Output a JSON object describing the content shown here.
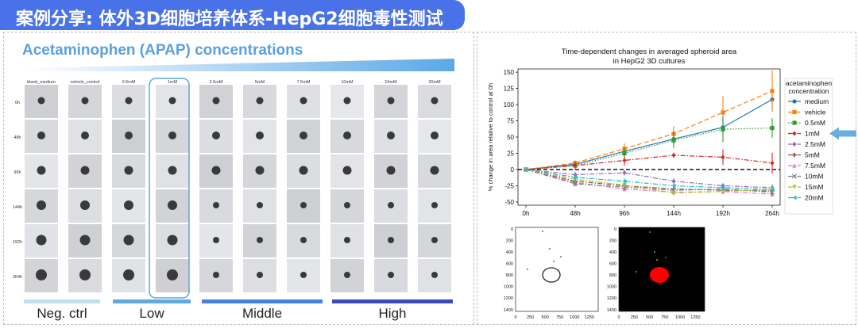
{
  "banner": {
    "title": "案例分享: 体外3D细胞培养体系-HepG2细胞毒性测试"
  },
  "left": {
    "title": "Acetaminophen (APAP) concentrations",
    "columns": [
      "blank_medium",
      "vehicle_control",
      "0.5mM",
      "1mM",
      "2.5mM",
      "5mM",
      "7.5mM",
      "10mM",
      "15mM",
      "20mM"
    ],
    "rows": [
      "0h",
      "48h",
      "96h",
      "144h",
      "192h",
      "264h"
    ],
    "groups": [
      {
        "label": "Neg. ctrl",
        "color": "#bfe1ee"
      },
      {
        "label": "Low",
        "color": "#5fa8e0"
      },
      {
        "label": "Middle",
        "color": "#4680e0"
      },
      {
        "label": "High",
        "color": "#3a4bb5"
      }
    ],
    "highlight_column": "1mM"
  },
  "chart_data": {
    "type": "line",
    "title": "Time-dependent changes in averaged spheroid area\nin HepG2 3D cultures",
    "title_lines": [
      "Time-dependent changes in averaged spheroid area",
      "in HepG2 3D cultures"
    ],
    "xlabel": "",
    "ylabel": "% change in area relative to control at 0h",
    "categories": [
      "0h",
      "48h",
      "96h",
      "144h",
      "192h",
      "264h"
    ],
    "ylim": [
      -55,
      155
    ],
    "yticks": [
      -50,
      -25,
      0,
      25,
      50,
      75,
      100,
      125,
      150
    ],
    "legend_title": [
      "acetaminophen",
      "concentration"
    ],
    "legend_position": "right",
    "highlight_series": "1mM",
    "series": [
      {
        "name": "medium",
        "color": "#1f77b4",
        "marker": "o",
        "dash": "solid",
        "values": [
          0,
          8,
          28,
          47,
          65,
          108
        ],
        "errors": [
          0,
          4,
          6,
          8,
          12,
          15
        ]
      },
      {
        "name": "vehicle",
        "color": "#ff7f0e",
        "marker": "s",
        "dash": "dash",
        "values": [
          0,
          10,
          32,
          55,
          88,
          121
        ],
        "errors": [
          0,
          4,
          8,
          12,
          25,
          32
        ]
      },
      {
        "name": "0.5mM",
        "color": "#2ca02c",
        "marker": "s",
        "dash": "dot",
        "values": [
          0,
          6,
          25,
          45,
          62,
          64
        ],
        "errors": [
          0,
          5,
          8,
          12,
          20,
          15
        ]
      },
      {
        "name": "1mM",
        "color": "#d62728",
        "marker": "D",
        "dash": "dashdot",
        "values": [
          0,
          6,
          14,
          22,
          19,
          10
        ],
        "errors": [
          0,
          6,
          8,
          4,
          12,
          16
        ]
      },
      {
        "name": "2.5mM",
        "color": "#9467bd",
        "marker": "D",
        "dash": "dashdot",
        "values": [
          0,
          -8,
          -5,
          -18,
          -25,
          -28
        ],
        "errors": [
          0,
          4,
          4,
          4,
          4,
          5
        ]
      },
      {
        "name": "5mM",
        "color": "#8c564b",
        "marker": "P",
        "dash": "dashdot",
        "values": [
          0,
          -18,
          -25,
          -30,
          -32,
          -33
        ],
        "errors": [
          0,
          4,
          4,
          4,
          4,
          4
        ]
      },
      {
        "name": "7.5mM",
        "color": "#e377c2",
        "marker": "^",
        "dash": "dashdot",
        "values": [
          0,
          -20,
          -30,
          -35,
          -34,
          -38
        ],
        "errors": [
          0,
          4,
          4,
          4,
          4,
          4
        ]
      },
      {
        "name": "10mM",
        "color": "#7f7f7f",
        "marker": "x",
        "dash": "dashdot",
        "values": [
          0,
          -22,
          -27,
          -32,
          -30,
          -35
        ],
        "errors": [
          0,
          4,
          4,
          4,
          4,
          4
        ]
      },
      {
        "name": "15mM",
        "color": "#bcbd22",
        "marker": "v",
        "dash": "dashdot",
        "values": [
          0,
          -15,
          -24,
          -36,
          -34,
          -30
        ],
        "errors": [
          0,
          4,
          4,
          4,
          4,
          4
        ]
      },
      {
        "name": "20mM",
        "color": "#17becf",
        "marker": "<",
        "dash": "dashdot",
        "values": [
          0,
          -12,
          -18,
          -25,
          -28,
          -31
        ],
        "errors": [
          0,
          8,
          5,
          4,
          4,
          4
        ]
      }
    ]
  },
  "mini_plots": {
    "xticks": [
      "0",
      "250",
      "500",
      "750",
      "1000",
      "1250"
    ],
    "yticks": [
      "0",
      "200",
      "400",
      "600",
      "800",
      "1000",
      "1200",
      "1400"
    ]
  }
}
